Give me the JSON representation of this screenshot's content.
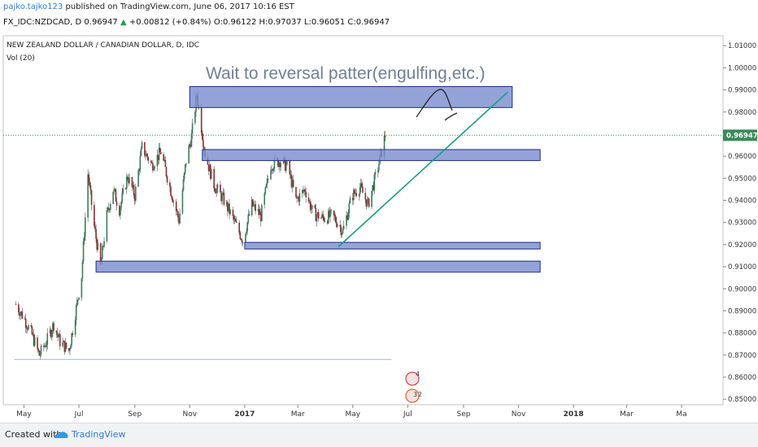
{
  "header": {
    "author": "pajko.tajko123",
    "published_text": "published on TradingView.com, June 06, 2017 10:16 EST",
    "symbol": "FX_IDC:NZDCAD, D",
    "last_price": "0.96947",
    "arrow": "▲",
    "change": "+0.00812 (+0.84%)",
    "ohlc": "O:0.96122 H:0.97037 L:0.96051 C:0.96947"
  },
  "chart_data": {
    "type": "candlestick",
    "title": "NEW ZEALAND DOLLAR / CANADIAN DOLLAR, D, IDC",
    "indicator": "Vol (20)",
    "annotation": "Wait to reversal patter(engulfing,etc.)",
    "y_ticks": [
      "1.01000",
      "1.00000",
      "0.99000",
      "0.98000",
      "0.97000",
      "0.96000",
      "0.95000",
      "0.94000",
      "0.93000",
      "0.92000",
      "0.91000",
      "0.90000",
      "0.89000",
      "0.88000",
      "0.87000",
      "0.86000",
      "0.85000"
    ],
    "ylim": [
      0.8475,
      1.0145
    ],
    "x_ticks": [
      "May",
      "Jul",
      "Sep",
      "Nov",
      "2017",
      "Mar",
      "May",
      "Jul",
      "Sep",
      "Nov",
      "2018",
      "Mar",
      "Ma"
    ],
    "last_price_label": "0.96947",
    "last_price": 0.96947,
    "price_path": [
      [
        "2016-04-22",
        0.893
      ],
      [
        "2016-05-02",
        0.886
      ],
      [
        "2016-05-10",
        0.879
      ],
      [
        "2016-05-18",
        0.87
      ],
      [
        "2016-05-26",
        0.876
      ],
      [
        "2016-06-03",
        0.884
      ],
      [
        "2016-06-10",
        0.876
      ],
      [
        "2016-06-20",
        0.872
      ],
      [
        "2016-06-28",
        0.891
      ],
      [
        "2016-07-04",
        0.906
      ],
      [
        "2016-07-11",
        0.952
      ],
      [
        "2016-07-18",
        0.928
      ],
      [
        "2016-07-25",
        0.91
      ],
      [
        "2016-08-01",
        0.933
      ],
      [
        "2016-08-08",
        0.945
      ],
      [
        "2016-08-15",
        0.936
      ],
      [
        "2016-08-24",
        0.951
      ],
      [
        "2016-09-01",
        0.942
      ],
      [
        "2016-09-09",
        0.964
      ],
      [
        "2016-09-20",
        0.956
      ],
      [
        "2016-09-30",
        0.962
      ],
      [
        "2016-10-10",
        0.946
      ],
      [
        "2016-10-20",
        0.931
      ],
      [
        "2016-10-28",
        0.958
      ],
      [
        "2016-11-03",
        0.969
      ],
      [
        "2016-11-09",
        0.988
      ],
      [
        "2016-11-18",
        0.961
      ],
      [
        "2016-11-28",
        0.947
      ],
      [
        "2016-12-09",
        0.94
      ],
      [
        "2016-12-21",
        0.93
      ],
      [
        "2016-12-30",
        0.922
      ],
      [
        "2017-01-09",
        0.938
      ],
      [
        "2017-01-19",
        0.933
      ],
      [
        "2017-01-30",
        0.956
      ],
      [
        "2017-02-09",
        0.958
      ],
      [
        "2017-02-18",
        0.955
      ],
      [
        "2017-02-27",
        0.94
      ],
      [
        "2017-03-09",
        0.945
      ],
      [
        "2017-03-18",
        0.934
      ],
      [
        "2017-03-29",
        0.932
      ],
      [
        "2017-04-09",
        0.933
      ],
      [
        "2017-04-20",
        0.926
      ],
      [
        "2017-04-30",
        0.942
      ],
      [
        "2017-05-09",
        0.946
      ],
      [
        "2017-05-18",
        0.938
      ],
      [
        "2017-05-29",
        0.955
      ],
      [
        "2017-06-06",
        0.9695
      ]
    ],
    "zones": [
      {
        "from": "2016-11-01",
        "to": "2017-10-25",
        "low": 0.982,
        "high": 0.9915
      },
      {
        "from": "2016-11-15",
        "to": "2017-11-25",
        "low": 0.958,
        "high": 0.963
      },
      {
        "from": "2017-01-01",
        "to": "2017-11-25",
        "low": 0.918,
        "high": 0.921
      },
      {
        "from": "2016-07-20",
        "to": "2017-11-25",
        "low": 0.9075,
        "high": 0.9125
      }
    ],
    "trendline": {
      "from": [
        "2017-04-15",
        0.919
      ],
      "to": [
        "2017-10-20",
        0.989
      ]
    },
    "support_line": {
      "from": "2016-04-20",
      "to": "2017-06-13",
      "value": 0.868
    },
    "colors": {
      "up": "#3a7d5a",
      "down": "#8b2e2e",
      "zone_fill": "#7b8fd0",
      "zone_edge": "#1f2f86",
      "trend": "#1a9b86",
      "last_price": "#3a8a59",
      "support": "#9fb6d6"
    }
  },
  "footer": {
    "created_with": "Created with",
    "brand": "TradingView"
  }
}
